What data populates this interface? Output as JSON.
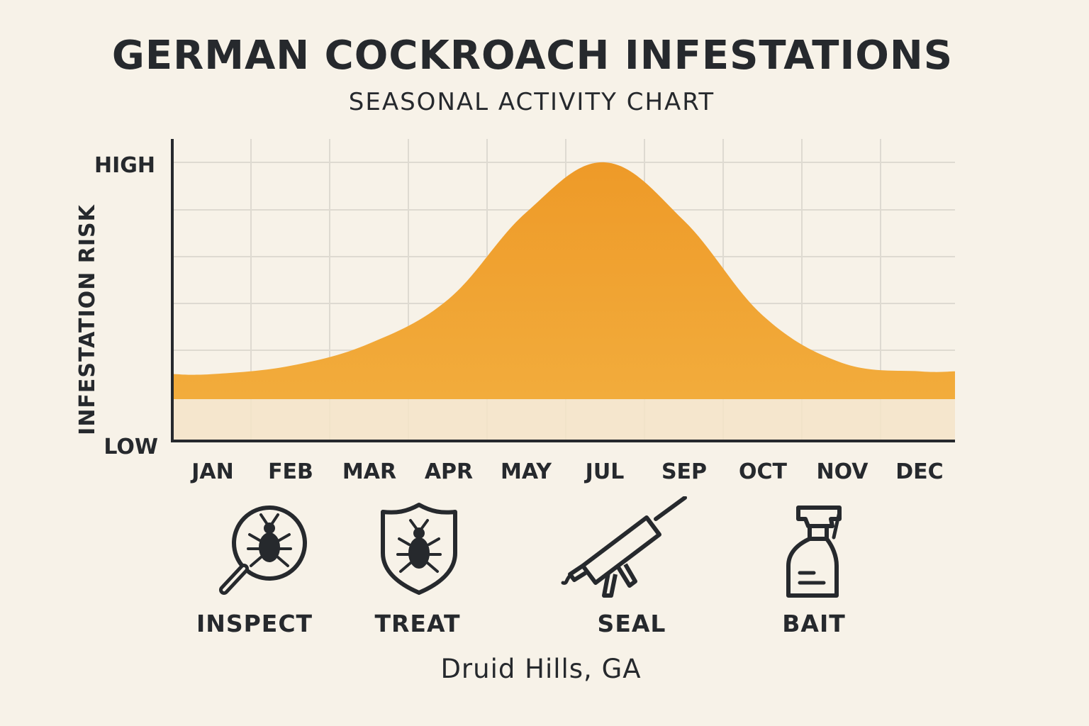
{
  "header": {
    "title": "GERMAN COCKROACH INFESTATIONS",
    "subtitle": "SEASONAL ACTIVITY CHART"
  },
  "chart_data": {
    "type": "area",
    "title": "GERMAN COCKROACH INFESTATIONS",
    "subtitle": "SEASONAL ACTIVITY CHART",
    "ylabel": "INFESTATION RISK",
    "xlabel": "",
    "y_tick_labels": [
      "LOW",
      "HIGH"
    ],
    "ylim": [
      0,
      1
    ],
    "categories": [
      "JAN",
      "FEB",
      "MAR",
      "APR",
      "MAY",
      "JUL",
      "SEP",
      "OCT",
      "NOV",
      "DEC"
    ],
    "series": [
      {
        "values": [
          0.24,
          0.27,
          0.35,
          0.51,
          0.82,
          1.0,
          0.79,
          0.45,
          0.28,
          0.25
        ]
      }
    ],
    "baseline_band": 0.15,
    "grid": true,
    "colors": {
      "area": "#f0a030",
      "band": "#f5e4c8",
      "grid": "#dedad1",
      "axis": "#26292d"
    }
  },
  "actions": [
    {
      "label": "INSPECT",
      "icon": "magnifier-bug-icon"
    },
    {
      "label": "TREAT",
      "icon": "shield-bug-icon"
    },
    {
      "label": "SEAL",
      "icon": "caulk-gun-icon"
    },
    {
      "label": "BAIT",
      "icon": "spray-bottle-icon"
    }
  ],
  "footer": {
    "location": "Druid Hills, GA"
  }
}
